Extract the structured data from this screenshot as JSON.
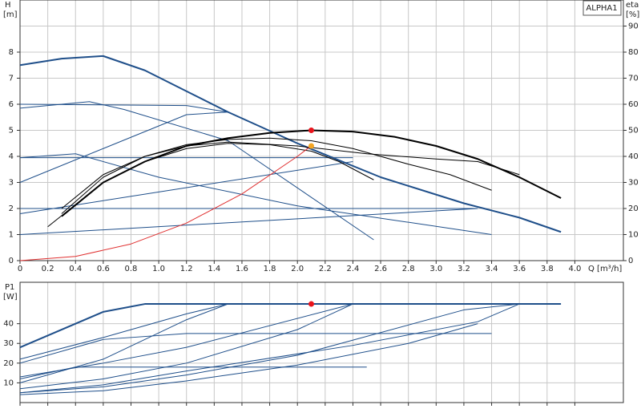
{
  "chart_data": [
    {
      "type": "line",
      "legend_label": "ALPHA1",
      "ylabel": "H",
      "yunit": "[m]",
      "y2label": "eta",
      "y2unit": "[%]",
      "xlabel": "Q [m³/h]",
      "xlim": [
        0,
        4.35
      ],
      "ylim": [
        0,
        10
      ],
      "y2lim": [
        0,
        100
      ],
      "grid": true,
      "xticks": [
        0,
        0.2,
        0.4,
        0.6,
        0.8,
        {
          "value": 1,
          "label": "1.0"
        },
        1.2,
        1.4,
        1.6,
        1.8,
        {
          "value": 2,
          "label": "2.0"
        },
        2.2,
        2.4,
        2.6,
        2.8,
        {
          "value": 3,
          "label": "3.0"
        },
        3.2,
        3.4,
        3.6,
        3.8,
        {
          "value": 4,
          "label": "4.0"
        }
      ],
      "yticks": [
        0,
        1,
        2,
        3,
        4,
        5,
        6,
        7,
        8
      ],
      "y2ticks": [
        0,
        10,
        20,
        30,
        40,
        50,
        60,
        70,
        80,
        90
      ],
      "series": [
        {
          "color": "#1f4f8a",
          "width": 2,
          "x": [
            0,
            0.3,
            0.6,
            0.9,
            1.2,
            1.5,
            2.0,
            2.6,
            3.2,
            3.6,
            3.9
          ],
          "values": [
            7.5,
            7.75,
            7.85,
            7.3,
            6.5,
            5.7,
            4.5,
            3.2,
            2.2,
            1.65,
            1.1
          ]
        },
        {
          "color": "#1f4f8a",
          "width": 1,
          "x": [
            0,
            1.2,
            1.5
          ],
          "values": [
            6.0,
            5.95,
            5.7
          ]
        },
        {
          "color": "#1f4f8a",
          "width": 1,
          "x": [
            0,
            0.5,
            0.75,
            1.5,
            2.55
          ],
          "values": [
            5.85,
            6.1,
            5.8,
            4.6,
            0.8
          ]
        },
        {
          "color": "#1f4f8a",
          "width": 1,
          "x": [
            0,
            0.6,
            1.2,
            1.5
          ],
          "values": [
            3.0,
            4.3,
            5.6,
            5.7
          ]
        },
        {
          "color": "#1f4f8a",
          "width": 1,
          "x": [
            0,
            0.4,
            1.0,
            2.0,
            3.4
          ],
          "values": [
            3.95,
            4.1,
            3.2,
            2.1,
            1.0
          ]
        },
        {
          "color": "#1f4f8a",
          "width": 1,
          "x": [
            0,
            2.4
          ],
          "values": [
            3.95,
            3.95
          ]
        },
        {
          "color": "#1f4f8a",
          "width": 1,
          "x": [
            0,
            1.2,
            2.4
          ],
          "values": [
            1.8,
            2.8,
            3.8
          ]
        },
        {
          "color": "#1f4f8a",
          "width": 1,
          "x": [
            0,
            3.3
          ],
          "values": [
            2.0,
            2.0
          ]
        },
        {
          "color": "#1f4f8a",
          "width": 1,
          "x": [
            0,
            3.3
          ],
          "values": [
            1.0,
            2.0
          ]
        },
        {
          "color": "#000000",
          "width": 2,
          "axis": "y2",
          "x": [
            0.3,
            0.6,
            0.9,
            1.2,
            1.5,
            1.8,
            2.1,
            2.4,
            2.7,
            3.0,
            3.3,
            3.6,
            3.9
          ],
          "values": [
            17,
            30,
            38,
            44,
            47,
            49,
            50,
            49.5,
            47.5,
            44,
            39,
            32,
            24
          ]
        },
        {
          "color": "#000000",
          "width": 1,
          "axis": "y2",
          "x": [
            0.3,
            0.6,
            0.9,
            1.2,
            1.5,
            1.8,
            2.1,
            2.4,
            2.8,
            3.1,
            3.4
          ],
          "values": [
            18,
            32,
            40,
            44.5,
            46.5,
            47,
            46,
            43,
            37,
            33,
            27
          ]
        },
        {
          "color": "#000000",
          "width": 1,
          "axis": "y2",
          "x": [
            0.2,
            0.6,
            0.9,
            1.2,
            1.5,
            1.8,
            2.1,
            2.3,
            2.55
          ],
          "values": [
            13,
            30,
            38,
            43,
            45,
            44.5,
            42,
            38,
            31
          ]
        },
        {
          "color": "#000000",
          "width": 1,
          "axis": "y2",
          "x": [
            0.3,
            0.6,
            0.9,
            1.2,
            1.5,
            2.0,
            2.5,
            3.0,
            3.3,
            3.6
          ],
          "values": [
            20,
            33,
            40,
            44,
            45.5,
            44,
            41,
            39,
            38,
            33
          ]
        },
        {
          "color": "#e03030",
          "width": 1,
          "x": [
            0,
            0.4,
            0.8,
            1.2,
            1.6,
            2.0,
            2.1
          ],
          "values": [
            0,
            0.16,
            0.64,
            1.44,
            2.56,
            4.0,
            4.41
          ]
        }
      ],
      "markers": [
        {
          "x": 2.1,
          "y": 50,
          "axis": "y2",
          "color": "#e8141c"
        },
        {
          "x": 2.1,
          "y": 4.4,
          "color": "#f5a623"
        }
      ]
    },
    {
      "type": "line",
      "ylabel": "P1",
      "yunit": "[W]",
      "xlim": [
        0,
        4.35
      ],
      "ylim": [
        0,
        61
      ],
      "grid": true,
      "xtick_labels": false,
      "xticks": [
        0,
        0.2,
        0.4,
        0.6,
        0.8,
        1,
        1.2,
        1.4,
        1.6,
        1.8,
        2,
        2.2,
        2.4,
        2.6,
        2.8,
        3,
        3.2,
        3.4,
        3.6,
        3.8,
        4
      ],
      "yticks": [
        10,
        20,
        30,
        40
      ],
      "series": [
        {
          "color": "#1f4f8a",
          "width": 2,
          "x": [
            0,
            0.6,
            0.9,
            3.9
          ],
          "values": [
            28,
            46,
            50,
            50
          ]
        },
        {
          "color": "#1f4f8a",
          "width": 1,
          "x": [
            0,
            0.6,
            1.2,
            1.5
          ],
          "values": [
            22,
            33,
            45,
            50
          ]
        },
        {
          "color": "#1f4f8a",
          "width": 1,
          "x": [
            0,
            0.6,
            1.2,
            3.4
          ],
          "values": [
            20,
            32,
            35,
            35
          ]
        },
        {
          "color": "#1f4f8a",
          "width": 1,
          "x": [
            0,
            0.6,
            1.2,
            1.5
          ],
          "values": [
            10,
            22,
            42,
            50
          ]
        },
        {
          "color": "#1f4f8a",
          "width": 1,
          "x": [
            0,
            0.6,
            1.2,
            2.4
          ],
          "values": [
            13,
            20,
            28,
            50
          ]
        },
        {
          "color": "#1f4f8a",
          "width": 1,
          "x": [
            0,
            0.4,
            2.5
          ],
          "values": [
            12,
            18,
            18
          ]
        },
        {
          "color": "#1f4f8a",
          "width": 1,
          "x": [
            0,
            0.6,
            1.2,
            2.0,
            2.4
          ],
          "values": [
            7,
            12,
            20,
            37,
            50
          ]
        },
        {
          "color": "#1f4f8a",
          "width": 1,
          "x": [
            0,
            0.6,
            1.2,
            2.0,
            3.2,
            3.6
          ],
          "values": [
            5,
            8,
            14,
            24,
            47,
            50
          ]
        },
        {
          "color": "#1f4f8a",
          "width": 1,
          "x": [
            0,
            0.6,
            1.2,
            2.4,
            3.3,
            3.6
          ],
          "values": [
            5,
            9,
            16,
            29,
            41,
            50
          ]
        },
        {
          "color": "#1f4f8a",
          "width": 1,
          "x": [
            0,
            0.6,
            1.2,
            2.0,
            2.8,
            3.3
          ],
          "values": [
            4,
            6,
            11,
            19,
            30,
            40
          ]
        }
      ],
      "markers": [
        {
          "x": 2.1,
          "y": 50,
          "color": "#e8141c"
        }
      ]
    }
  ]
}
